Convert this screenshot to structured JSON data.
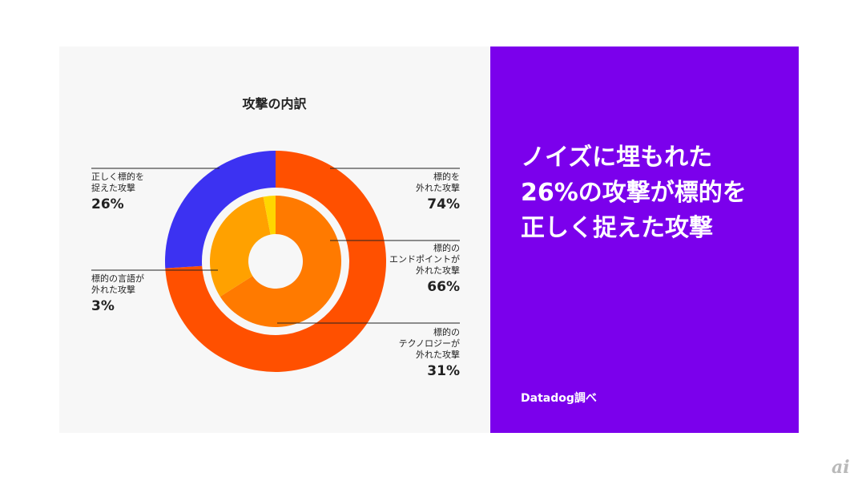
{
  "chart_data": {
    "type": "pie",
    "title": "攻撃の内訳",
    "outer_ring": [
      {
        "label": "標的を外れた攻撃",
        "label_lines": [
          "標的を",
          "外れた攻撃"
        ],
        "value": 74,
        "display": "74%",
        "color": "#ff5000"
      },
      {
        "label": "正しく標的を捉えた攻撃",
        "label_lines": [
          "正しく標的を",
          "捉えた攻撃"
        ],
        "value": 26,
        "display": "26%",
        "color": "#3c32f2"
      }
    ],
    "inner_ring": [
      {
        "label": "標的のエンドポイントが外れた攻撃",
        "label_lines": [
          "標的の",
          "エンドポイントが",
          "外れた攻撃"
        ],
        "value": 66,
        "display": "66%",
        "color": "#ff7a00"
      },
      {
        "label": "標的のテクノロジーが外れた攻撃",
        "label_lines": [
          "標的の",
          "テクノロジーが",
          "外れた攻撃"
        ],
        "value": 31,
        "display": "31%",
        "color": "#ffa100"
      },
      {
        "label": "標的の言語が外れた攻撃",
        "label_lines": [
          "標的の言語が",
          "外れた攻撃"
        ],
        "value": 3,
        "display": "3%",
        "color": "#ffd600"
      }
    ]
  },
  "headline_lines": [
    "ノイズに埋もれた",
    "26%の攻撃が標的を",
    "正しく捉えた攻撃"
  ],
  "source": "Datadog調べ",
  "logo": "ai",
  "colors": {
    "panel_bg": "#f7f7f7",
    "accent_purple": "#7b00ec",
    "leader_line": "#222222"
  }
}
